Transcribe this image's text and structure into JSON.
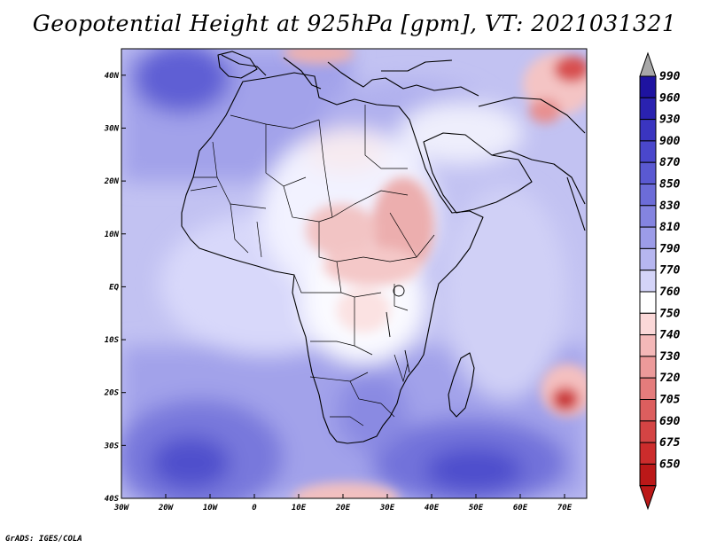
{
  "title": "Geopotential Height at 925hPa [gpm], VT: 2021031321",
  "credit": "GrADS: IGES/COLA",
  "map": {
    "lon_labels": [
      "30W",
      "20W",
      "10W",
      "0",
      "10E",
      "20E",
      "30E",
      "40E",
      "50E",
      "60E",
      "70E"
    ],
    "lat_labels": [
      "40N",
      "30N",
      "20N",
      "10N",
      "EQ",
      "10S",
      "20S",
      "30S",
      "40S"
    ],
    "lon_range": [
      -30,
      75
    ],
    "lat_range": [
      -40,
      45
    ]
  },
  "legend": {
    "levels": [
      "990",
      "960",
      "930",
      "900",
      "870",
      "850",
      "830",
      "810",
      "790",
      "770",
      "760",
      "750",
      "740",
      "730",
      "720",
      "705",
      "690",
      "675",
      "650"
    ],
    "colors": [
      "#1e13a0",
      "#2a22b0",
      "#3a35c0",
      "#4a47cc",
      "#5a59d2",
      "#6c6cd8",
      "#8484e0",
      "#9c9ce8",
      "#b6b6f0",
      "#d4d4f8",
      "#ffffff",
      "#fbd8d8",
      "#f4b8b8",
      "#ec9a9a",
      "#e47c7c",
      "#dc5e5e",
      "#d44444",
      "#cc2c2c",
      "#bb1818"
    ],
    "top_arrow_color": "#a8a8a8",
    "bottom_arrow_color": "#bb1818"
  }
}
